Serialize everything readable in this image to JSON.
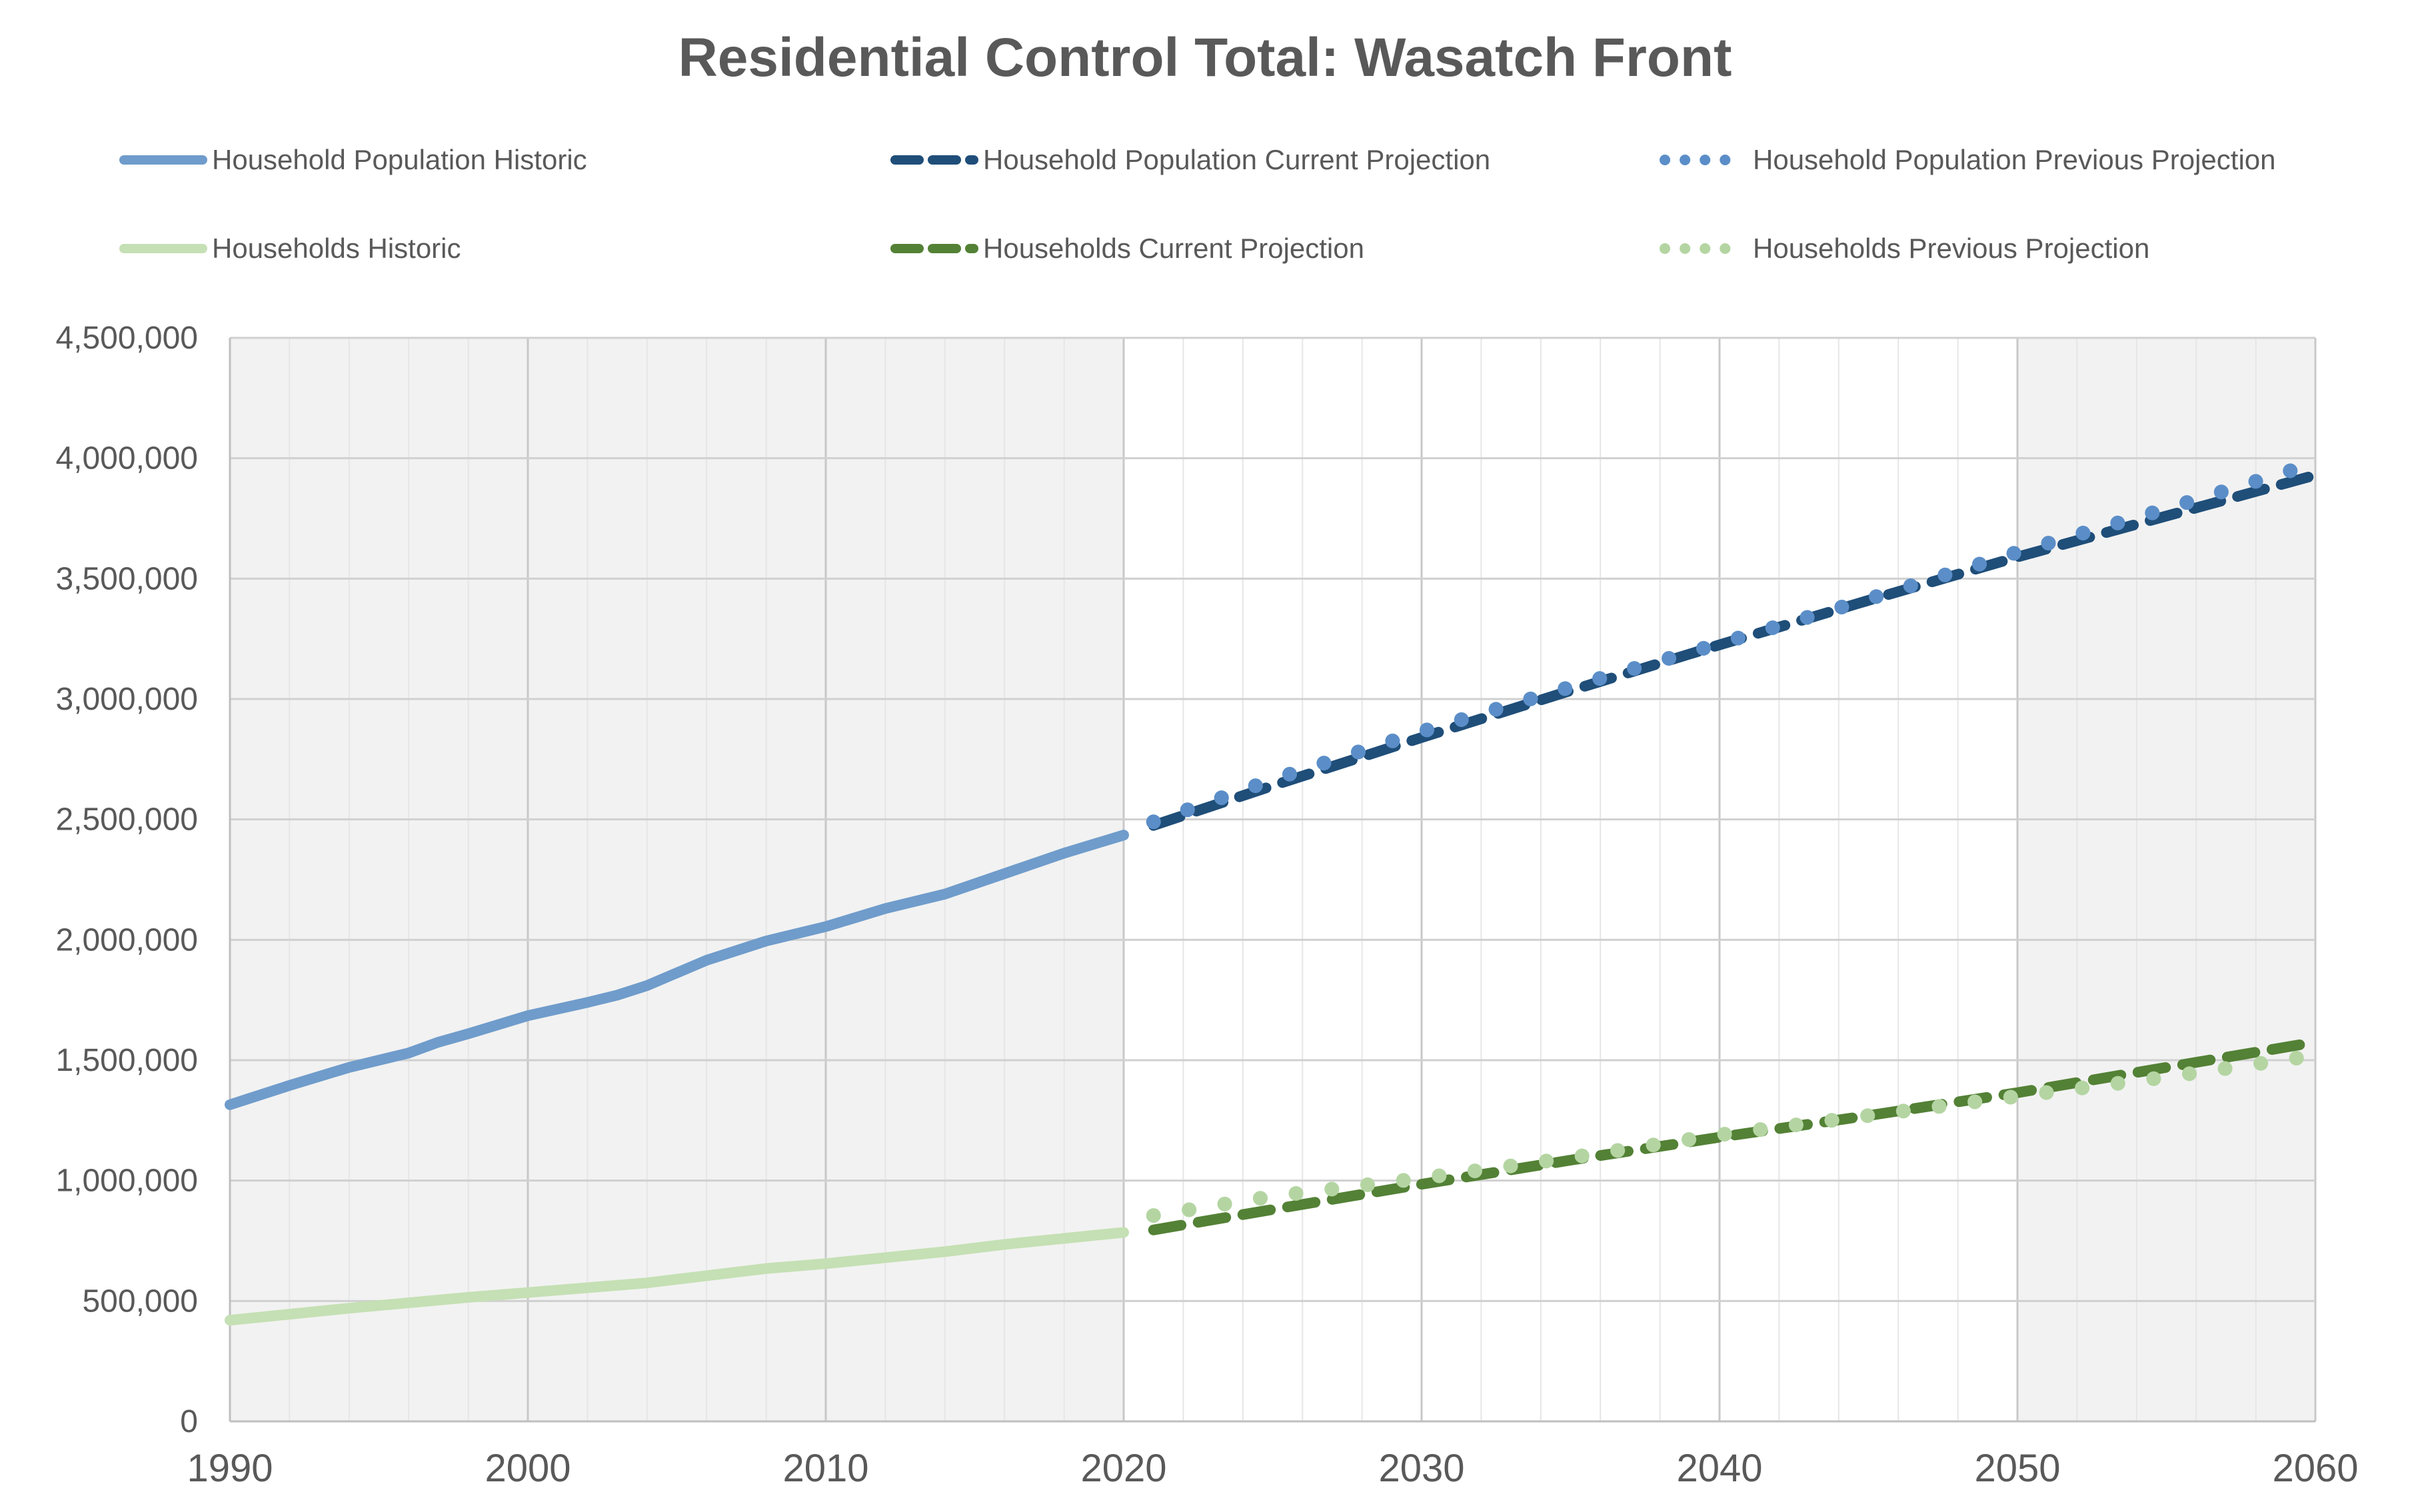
{
  "chart_data": {
    "type": "line",
    "title": "Residential Control Total: Wasatch Front",
    "xlabel": "",
    "ylabel": "",
    "xlim": [
      1990,
      2060
    ],
    "ylim": [
      0,
      4500000
    ],
    "x_ticks": [
      "1990",
      "2000",
      "2010",
      "2020",
      "2030",
      "2040",
      "2050",
      "2060"
    ],
    "y_ticks": [
      "0",
      "500,000",
      "1,000,000",
      "1,500,000",
      "2,000,000",
      "2,500,000",
      "3,000,000",
      "3,500,000",
      "4,000,000",
      "4,500,000"
    ],
    "grid": true,
    "legend_position": "top",
    "shaded_regions": [
      {
        "from": 1990,
        "to": 2020,
        "color": "#f2f2f2"
      },
      {
        "from": 2050,
        "to": 2060,
        "color": "#f2f2f2"
      }
    ],
    "series": [
      {
        "name": "Household Population Historic",
        "style": "solid",
        "color": "#6f9ccb",
        "x": [
          1990,
          1992,
          1994,
          1996,
          1997,
          1998,
          2000,
          2002,
          2003,
          2004,
          2006,
          2008,
          2010,
          2012,
          2014,
          2016,
          2018,
          2020
        ],
        "y": [
          1315000,
          1395000,
          1470000,
          1530000,
          1575000,
          1610000,
          1685000,
          1740000,
          1770000,
          1810000,
          1915000,
          1995000,
          2055000,
          2130000,
          2190000,
          2275000,
          2360000,
          2435000
        ]
      },
      {
        "name": "Household Population Current Projection",
        "style": "dashed",
        "color": "#1f4e79",
        "x": [
          2021,
          2025,
          2030,
          2035,
          2040,
          2045,
          2050,
          2055,
          2060
        ],
        "y": [
          2475000,
          2640000,
          2840000,
          3035000,
          3225000,
          3410000,
          3590000,
          3760000,
          3930000
        ]
      },
      {
        "name": "Household Population Previous Projection",
        "style": "dotted",
        "color": "#5b8ec8",
        "x": [
          2021,
          2025,
          2030,
          2035,
          2040,
          2045,
          2050,
          2055,
          2060
        ],
        "y": [
          2490000,
          2665000,
          2865000,
          3050000,
          3230000,
          3415000,
          3610000,
          3790000,
          3980000
        ]
      },
      {
        "name": "Households Historic",
        "style": "solid",
        "color": "#c5e0b4",
        "x": [
          1990,
          1994,
          1998,
          2000,
          2004,
          2006,
          2008,
          2010,
          2014,
          2016,
          2018,
          2020
        ],
        "y": [
          420000,
          470000,
          515000,
          535000,
          575000,
          605000,
          635000,
          655000,
          705000,
          735000,
          760000,
          785000
        ]
      },
      {
        "name": "Households Current Projection",
        "style": "dashed",
        "color": "#538135",
        "x": [
          2021,
          2025,
          2030,
          2035,
          2040,
          2045,
          2050,
          2055,
          2060
        ],
        "y": [
          795000,
          880000,
          985000,
          1085000,
          1180000,
          1270000,
          1365000,
          1470000,
          1575000
        ]
      },
      {
        "name": "Households Previous Projection",
        "style": "dotted",
        "color": "#b4d5a2",
        "x": [
          2021,
          2025,
          2030,
          2035,
          2040,
          2045,
          2050,
          2055,
          2060
        ],
        "y": [
          855000,
          935000,
          1010000,
          1095000,
          1190000,
          1270000,
          1350000,
          1430000,
          1520000
        ]
      }
    ]
  }
}
